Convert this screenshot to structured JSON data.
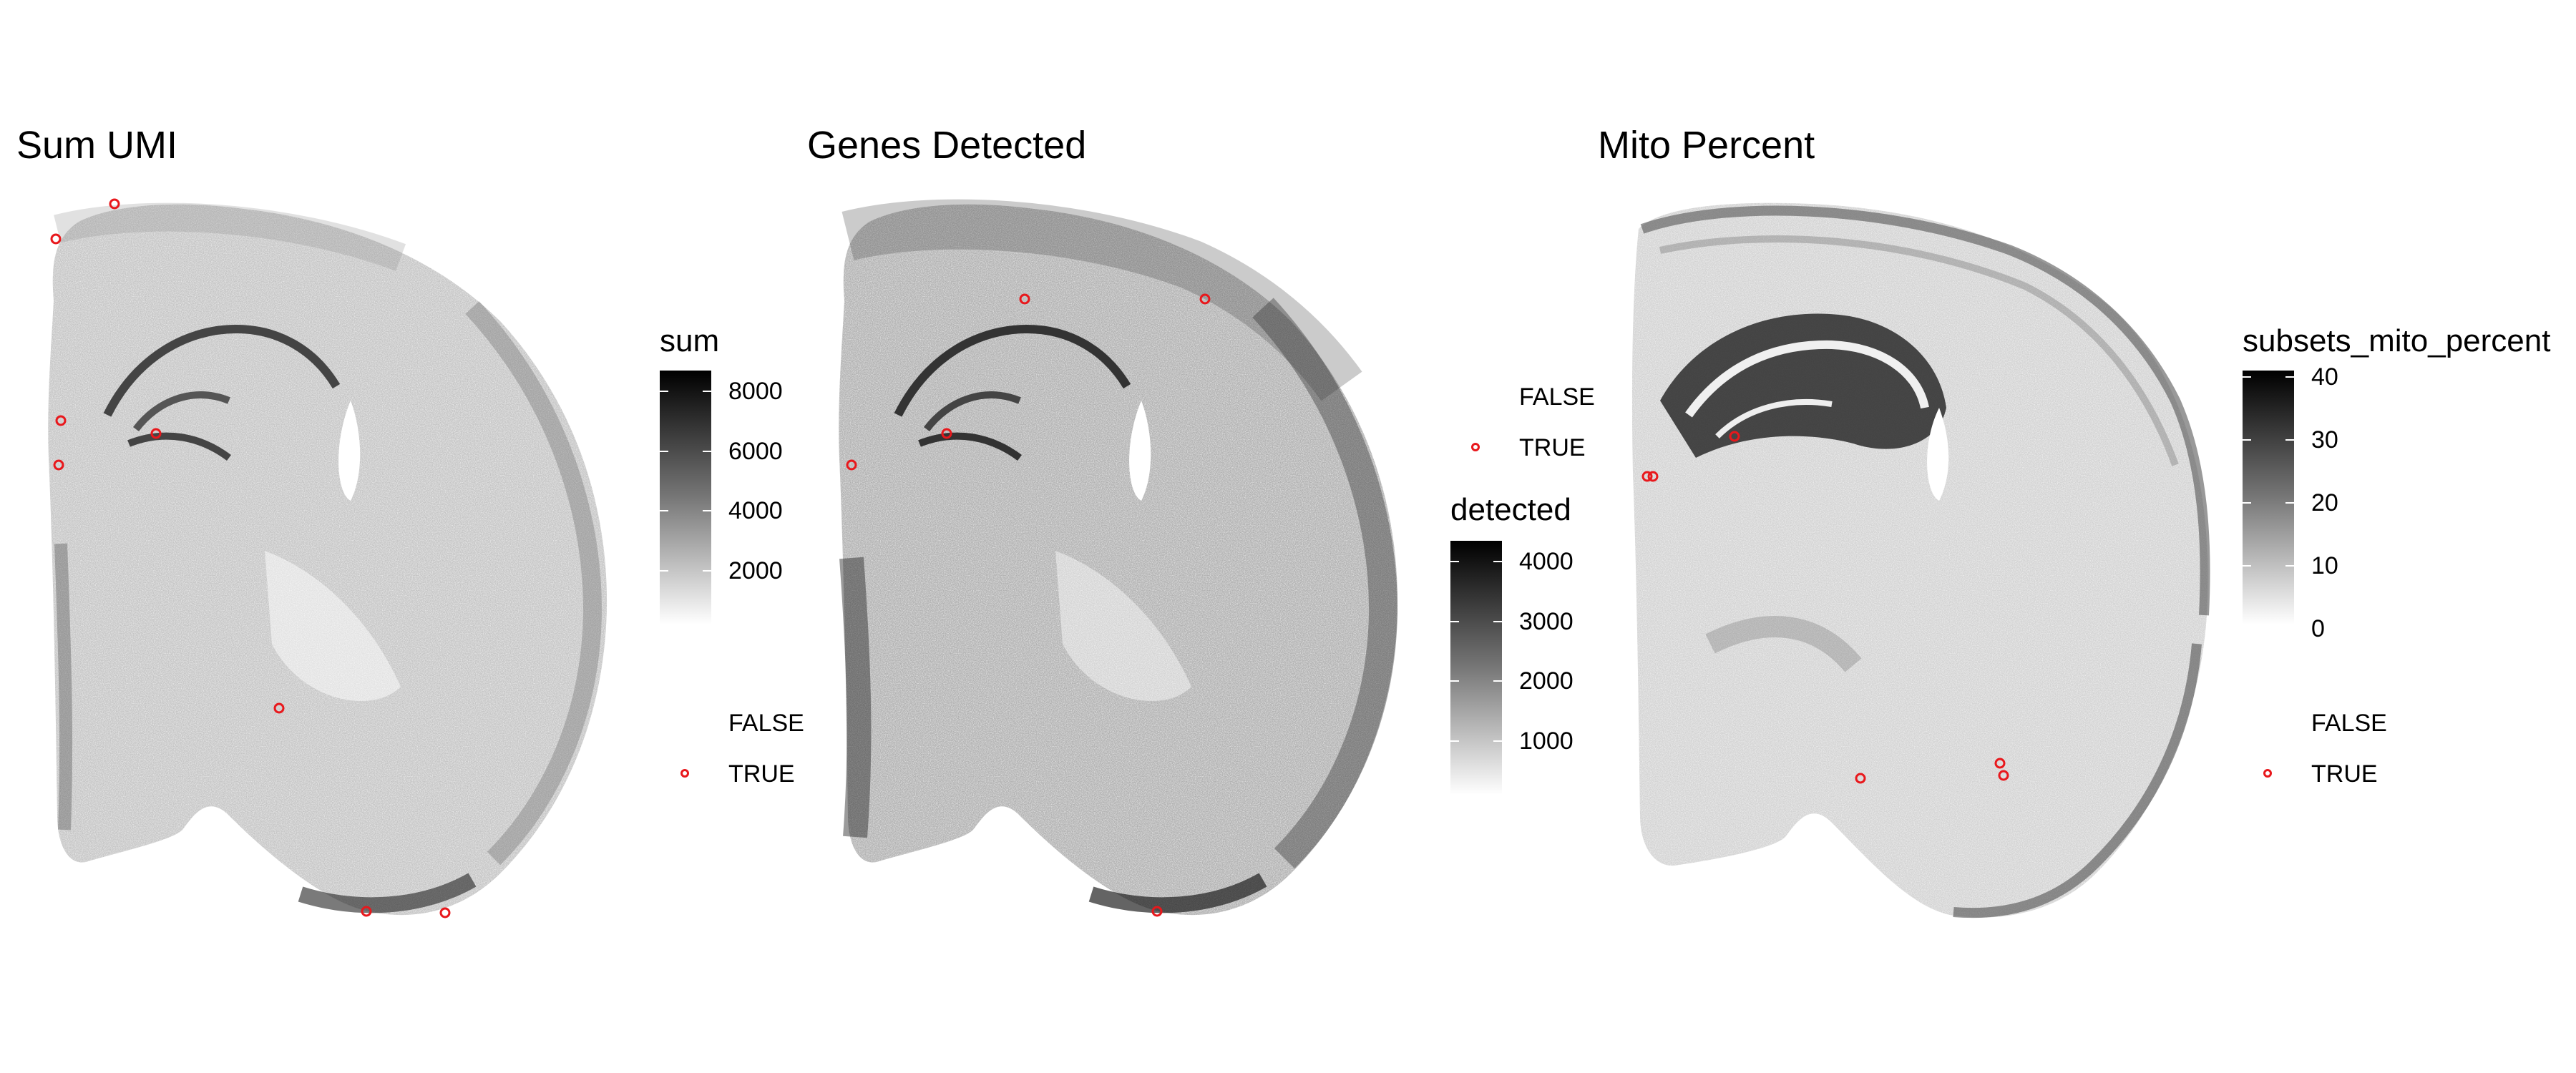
{
  "chart_data": [
    {
      "type": "scatter",
      "title": "Sum UMI",
      "colorbar": {
        "title": "sum",
        "ticks": [
          "8000",
          "6000",
          "4000",
          "2000"
        ],
        "range": [
          0,
          9000
        ],
        "colors": [
          "#ffffff",
          "#000000"
        ]
      },
      "key": {
        "labels": [
          "FALSE",
          "TRUE"
        ],
        "true_color": "#e8181c"
      },
      "outliers_count": 9
    },
    {
      "type": "scatter",
      "title": "Genes Detected",
      "colorbar": {
        "title": "detected",
        "ticks": [
          "4000",
          "3000",
          "2000",
          "1000"
        ],
        "range": [
          0,
          4500
        ],
        "colors": [
          "#ffffff",
          "#000000"
        ]
      },
      "key": {
        "labels": [
          "FALSE",
          "TRUE"
        ],
        "true_color": "#e8181c"
      },
      "outliers_count": 6
    },
    {
      "type": "scatter",
      "title": "Mito Percent",
      "colorbar": {
        "title": "subsets_mito_percent",
        "ticks": [
          "40",
          "30",
          "20",
          "10",
          "0"
        ],
        "range": [
          0,
          41
        ],
        "colors": [
          "#ffffff",
          "#000000"
        ]
      },
      "key": {
        "labels": [
          "FALSE",
          "TRUE"
        ],
        "true_color": "#e8181c"
      },
      "outliers_count": 6
    }
  ]
}
